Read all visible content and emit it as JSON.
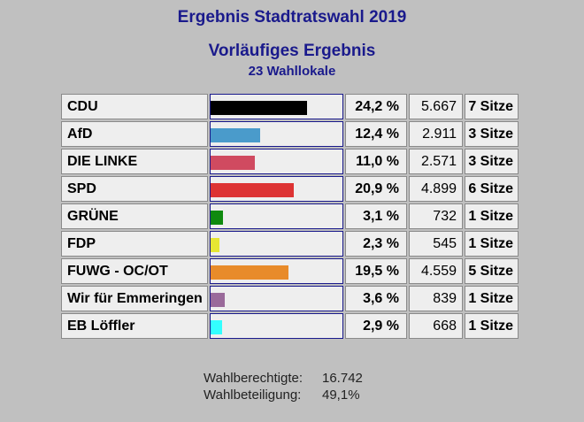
{
  "header": {
    "title": "Ergebnis Stadtratswahl 2019",
    "subtitle": "Vorläufiges Ergebnis",
    "subtitle2": "23 Wahllokale"
  },
  "chart_data": {
    "type": "bar",
    "categories": [
      "CDU",
      "AfD",
      "DIE LINKE",
      "SPD",
      "GRÜNE",
      "FDP",
      "FUWG - OC/OT",
      "Wir für Emmeringen",
      "EB Löffler"
    ],
    "values": [
      24.2,
      12.4,
      11.0,
      20.9,
      3.1,
      2.3,
      19.5,
      3.6,
      2.9
    ],
    "unit": "%",
    "xlim": [
      0,
      33
    ],
    "colors": [
      "#000000",
      "#4a9bcb",
      "#d04a60",
      "#dd3333",
      "#0f8a0f",
      "#e6e633",
      "#e88b2a",
      "#9a6a9a",
      "#33ffff"
    ]
  },
  "rows": [
    {
      "party": "CDU",
      "pct": "24,2 %",
      "votes": "5.667",
      "seats": "7 Sitze"
    },
    {
      "party": "AfD",
      "pct": "12,4 %",
      "votes": "2.911",
      "seats": "3 Sitze"
    },
    {
      "party": "DIE LINKE",
      "pct": "11,0 %",
      "votes": "2.571",
      "seats": "3 Sitze"
    },
    {
      "party": "SPD",
      "pct": "20,9 %",
      "votes": "4.899",
      "seats": "6 Sitze"
    },
    {
      "party": "GRÜNE",
      "pct": "3,1 %",
      "votes": "732",
      "seats": "1 Sitze"
    },
    {
      "party": "FDP",
      "pct": "2,3 %",
      "votes": "545",
      "seats": "1 Sitze"
    },
    {
      "party": "FUWG - OC/OT",
      "pct": "19,5 %",
      "votes": "4.559",
      "seats": "5 Sitze"
    },
    {
      "party": "Wir für Emmeringen",
      "pct": "3,6 %",
      "votes": "839",
      "seats": "1 Sitze"
    },
    {
      "party": "EB Löffler",
      "pct": "2,9 %",
      "votes": "668",
      "seats": "1 Sitze"
    }
  ],
  "footer": {
    "eligible_label": "Wahlberechtigte:",
    "eligible_value": "16.742",
    "turnout_label": "Wahlbeteiligung:",
    "turnout_value": "49,1%"
  }
}
